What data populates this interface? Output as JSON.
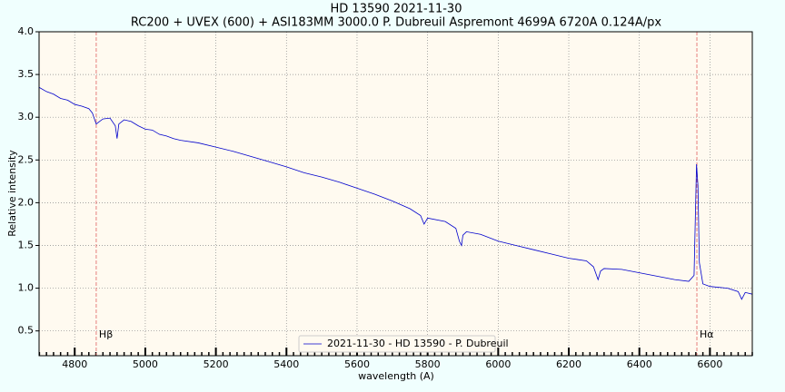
{
  "chart_data": {
    "type": "line",
    "title": "HD 13590 2021-11-30",
    "subtitle": "RC200 + UVEX (600) + ASI183MM 3000.0 P. Dubreuil Aspremont 4699A 6720A 0.124A/px",
    "x_label": "wavelength (A)",
    "y_label": "Relative intensity",
    "x": [
      4699,
      4720,
      4740,
      4760,
      4780,
      4800,
      4820,
      4840,
      4850,
      4861,
      4870,
      4880,
      4900,
      4915,
      4920,
      4925,
      4940,
      4960,
      4980,
      5000,
      5020,
      5040,
      5060,
      5080,
      5100,
      5150,
      5200,
      5250,
      5300,
      5350,
      5400,
      5450,
      5500,
      5550,
      5600,
      5650,
      5700,
      5750,
      5780,
      5790,
      5800,
      5850,
      5880,
      5890,
      5896,
      5900,
      5910,
      5950,
      6000,
      6050,
      6100,
      6150,
      6200,
      6250,
      6270,
      6283,
      6290,
      6300,
      6350,
      6400,
      6450,
      6500,
      6540,
      6555,
      6562,
      6566,
      6570,
      6580,
      6600,
      6650,
      6680,
      6690,
      6700,
      6720
    ],
    "series": [
      {
        "name": "2021-11-30 - HD 13590 - P. Dubreuil",
        "color": "#0000cc",
        "values": [
          3.35,
          3.3,
          3.27,
          3.22,
          3.2,
          3.15,
          3.13,
          3.1,
          3.05,
          2.92,
          2.95,
          2.98,
          2.99,
          2.9,
          2.75,
          2.92,
          2.97,
          2.95,
          2.9,
          2.86,
          2.85,
          2.8,
          2.78,
          2.75,
          2.73,
          2.7,
          2.65,
          2.6,
          2.54,
          2.48,
          2.42,
          2.35,
          2.3,
          2.24,
          2.17,
          2.1,
          2.02,
          1.93,
          1.85,
          1.75,
          1.82,
          1.78,
          1.7,
          1.55,
          1.5,
          1.62,
          1.66,
          1.63,
          1.55,
          1.5,
          1.45,
          1.4,
          1.35,
          1.32,
          1.25,
          1.1,
          1.2,
          1.23,
          1.22,
          1.18,
          1.14,
          1.1,
          1.08,
          1.15,
          2.45,
          2.2,
          1.3,
          1.05,
          1.02,
          1.0,
          0.96,
          0.87,
          0.95,
          0.93
        ]
      }
    ],
    "xlim": [
      4699,
      6720
    ],
    "ylim": [
      0.21,
      4.0
    ],
    "xticks": [
      4800,
      5000,
      5200,
      5400,
      5600,
      5800,
      6000,
      6200,
      6400,
      6600
    ],
    "xminorticks": [
      4700,
      4720,
      4740,
      4760,
      4780,
      4820,
      4840,
      4860,
      4880,
      4900,
      4920,
      4940,
      4960,
      4980,
      5020,
      5040,
      5060,
      5080,
      5100,
      5120,
      5140,
      5160,
      5180,
      5220,
      5240,
      5260,
      5280,
      5300,
      5320,
      5340,
      5360,
      5380,
      5420,
      5440,
      5460,
      5480,
      5500,
      5520,
      5540,
      5560,
      5580,
      5620,
      5640,
      5660,
      5680,
      5700,
      5720,
      5740,
      5760,
      5780,
      5820,
      5840,
      5860,
      5880,
      5900,
      5920,
      5940,
      5960,
      5980,
      6020,
      6040,
      6060,
      6080,
      6100,
      6120,
      6140,
      6160,
      6180,
      6220,
      6240,
      6260,
      6280,
      6300,
      6320,
      6340,
      6360,
      6380,
      6420,
      6440,
      6460,
      6480,
      6500,
      6520,
      6540,
      6560,
      6580,
      6620,
      6640,
      6660,
      6680,
      6700,
      6720
    ],
    "yticks": [
      0.5,
      {
        "value": 1,
        "label": "1.0"
      },
      1.5,
      {
        "value": 2,
        "label": "2.0"
      },
      2.5,
      {
        "value": 3,
        "label": "3.0"
      },
      3.5,
      {
        "value": 4,
        "label": "4.0"
      }
    ],
    "grid": true,
    "vlines": [
      {
        "x": 4861,
        "label": "Hβ",
        "color": "#e06060"
      },
      {
        "x": 6563,
        "label": "Hα",
        "color": "#e06060"
      }
    ],
    "legend": "lower center"
  }
}
